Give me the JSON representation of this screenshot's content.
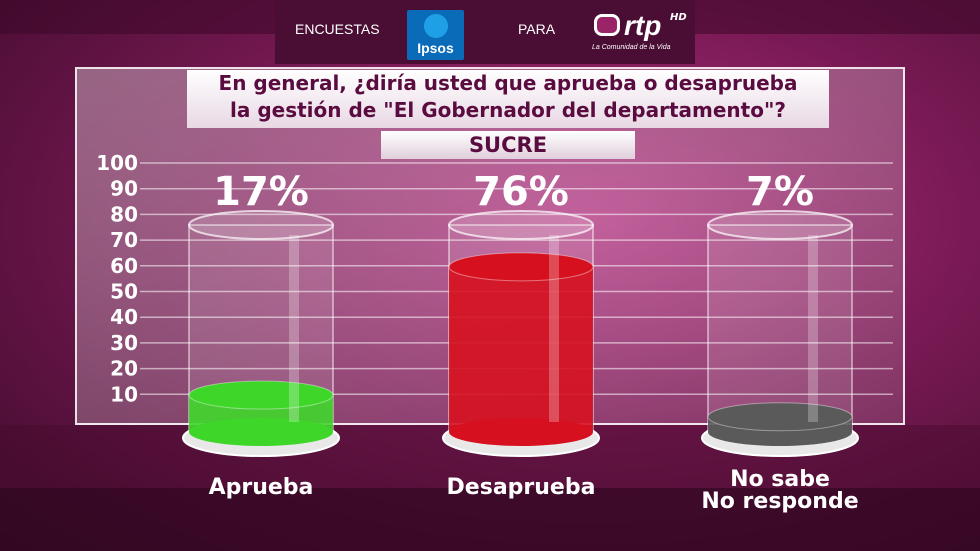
{
  "header": {
    "left_text": "ENCUESTAS",
    "middle_text": "PARA",
    "ipsos_logo": "Ipsos",
    "rtp_logo": "rtp",
    "rtp_hd": "HD",
    "rtp_tagline": "La Comunidad de la Vida"
  },
  "question": {
    "line1": "En general, ¿diría usted que aprueba o desaprueba",
    "line2": "la gestión de \"El Gobernador del departamento\"?"
  },
  "region": "SUCRE",
  "colors": {
    "aprueba": "#3fd62a",
    "desaprueba": "#d6101e",
    "no_sabe": "#5a5a5a"
  },
  "chart_data": {
    "type": "bar",
    "categories": [
      "Aprueba",
      "Desaprueba",
      "No sabe\nNo responde"
    ],
    "values": [
      17,
      76,
      7
    ],
    "value_labels": [
      "17%",
      "76%",
      "7%"
    ],
    "yticks": [
      10,
      20,
      30,
      40,
      50,
      60,
      70,
      80,
      90,
      100
    ],
    "ylim": [
      0,
      100
    ],
    "grid": true,
    "title": "",
    "xlabel": "",
    "ylabel": ""
  }
}
